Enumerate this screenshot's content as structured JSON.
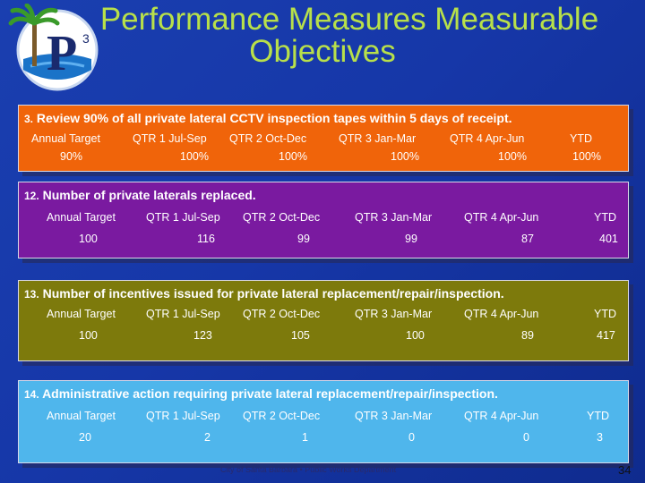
{
  "title": {
    "line1": "Performance Measures Measurable",
    "line2": "Objectives"
  },
  "logo": {
    "text": "P",
    "superscript": "3",
    "icon": "palm-tree-logo"
  },
  "measures": [
    {
      "number": "3.",
      "text": "Review 90% of all private lateral CCTV inspection tapes within 5 days of receipt.",
      "headers": [
        "Annual Target",
        "QTR 1 Jul-Sep",
        "QTR 2 Oct-Dec",
        "QTR 3 Jan-Mar",
        "QTR 4 Apr-Jun",
        "YTD"
      ],
      "values": [
        "90%",
        "100%",
        "100%",
        "100%",
        "100%",
        "100%"
      ],
      "color": "#f0640a"
    },
    {
      "number": "12.",
      "text": "Number of private laterals replaced.",
      "headers": [
        "Annual Target",
        "QTR 1 Jul-Sep",
        "QTR 2 Oct-Dec",
        "QTR 3 Jan-Mar",
        "QTR 4 Apr-Jun",
        "YTD"
      ],
      "values": [
        "100",
        "116",
        "99",
        "99",
        "87",
        "401"
      ],
      "color": "#7a1aa0"
    },
    {
      "number": "13.",
      "text": "Number of incentives issued for private lateral replacement/repair/inspection.",
      "headers": [
        "Annual Target",
        "QTR 1 Jul-Sep",
        "QTR 2 Oct-Dec",
        "QTR 3 Jan-Mar",
        "QTR 4 Apr-Jun",
        "YTD"
      ],
      "values": [
        "100",
        "123",
        "105",
        "100",
        "89",
        "417"
      ],
      "color": "#7d7a0c"
    },
    {
      "number": "14.",
      "text": "Administrative action requiring private lateral replacement/repair/inspection.",
      "headers": [
        "Annual Target",
        "QTR 1 Jul-Sep",
        "QTR 2 Oct-Dec",
        "QTR 3 Jan-Mar",
        "QTR 4 Apr-Jun",
        "YTD"
      ],
      "values": [
        "20",
        "2",
        "1",
        "0",
        "0",
        "3"
      ],
      "color": "#4fb6ec"
    }
  ],
  "footer": "City of Santa Barbara  •  Public Works Department",
  "page_number": "34"
}
